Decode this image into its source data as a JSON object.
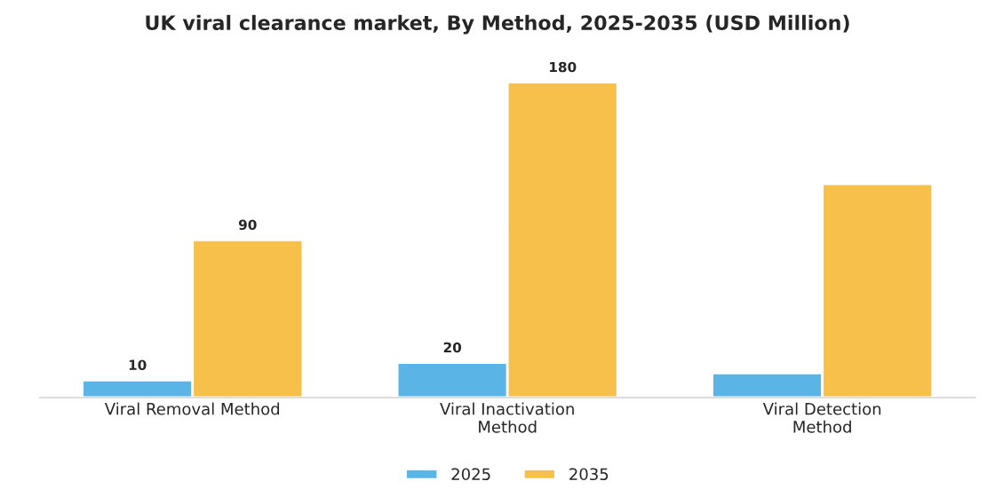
{
  "chart_data": {
    "type": "bar",
    "title": "UK viral clearance market, By Method, 2025-2035 (USD Million)",
    "categories": [
      "Viral Removal Method",
      "Viral Inactivation\nMethod",
      "Viral Detection\nMethod"
    ],
    "series": [
      {
        "name": "2025",
        "color": "#5ab4e5",
        "values": [
          10,
          20,
          14
        ],
        "value_labels": [
          "10",
          "20",
          null
        ]
      },
      {
        "name": "2035",
        "color": "#f7c04a",
        "values": [
          90,
          180,
          122
        ],
        "value_labels": [
          "90",
          "180",
          null
        ]
      }
    ],
    "legend": "bottom",
    "grid": false
  }
}
